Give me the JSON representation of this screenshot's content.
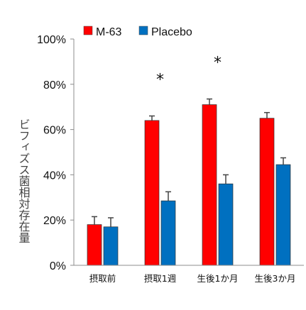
{
  "chart_data": {
    "type": "bar",
    "ylabel": "ビフィズス菌相対存在量",
    "ylim": [
      0,
      100
    ],
    "yticks": [
      "0%",
      "20%",
      "40%",
      "60%",
      "80%",
      "100%"
    ],
    "categories": [
      "摂取前",
      "摂取1週",
      "生後1か月",
      "生後3か月"
    ],
    "series": [
      {
        "name": "M-63",
        "color": "#ff0000",
        "values": [
          18,
          64,
          71,
          65
        ],
        "errors": [
          3.5,
          2,
          2.5,
          2.5
        ]
      },
      {
        "name": "Placebo",
        "color": "#0070c0",
        "values": [
          17,
          28.5,
          36,
          44.5
        ],
        "errors": [
          4,
          4,
          4,
          3
        ]
      }
    ],
    "annotations": [
      {
        "category": "摂取1週",
        "text": "*"
      },
      {
        "category": "生後1か月",
        "text": "*"
      }
    ],
    "legend": "top",
    "grid": false
  }
}
